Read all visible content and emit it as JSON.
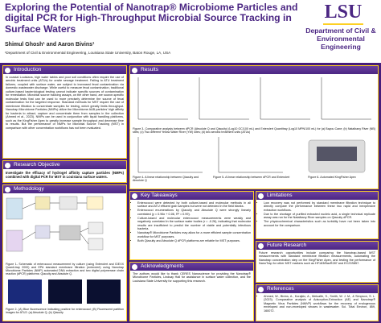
{
  "header": {
    "title": "Exploring the Potential of Nanotrap® Microbiome Particles and digital PCR for High-Throughput Microbial Source Tracking in Surface Waters",
    "authors": "Shimul Ghosh¹ and Aaron Bivins¹",
    "affiliation": "¹Department of Civil & Environmental Engineering, Louisiana State University, Baton Rouge, LA, USA",
    "logo": "LSU",
    "department": "Department of Civil & Environmental Engineering"
  },
  "introduction": {
    "heading": "Introduction",
    "text": "In coastal Louisiana, high water tables and poor soil conditions often require the use of aerobic treatment units (ATUs) for onsite sewage treatment. Failing to ATU treatment failures, coupled with surface water, are subject to increased fecal contamination via domestic wastewater discharge. While useful to measure fecal contamination, traditional culture-based bacteriological testing cannot indicate specific sources of contamination for remediation. Microbial source tracking assays, on the other hand, are source-specific molecular tests that can be used to more precisely determine the source of fecal contamination for the targeted response. Standard methods for MST require the use of membrane filtration to concentrate samples for testing, which greatly limits throughput. Nanotrap Microbiome Particles (NMPs) utilize the Microbiome A&B particles' high affinity for bacteria to attract, capture and concentrate them from samples in the collection (Ahmed et al., 2023). NMPs can be used in conjunction with liquid handling platforms, such as the KingFisher Apex to greatly increase sample throughput and decrease time to results. But the performance of NMPs for Microbial Source Tracking (MST) in comparison with other concentration workflows has not been evaluated."
  },
  "research_objective": {
    "heading": "Research Objective",
    "text": "Investigate the efficacy of hydrogel affinity capture particles (NMPs) combined with digital PCR for MST in Louisiana surface waters."
  },
  "methodology": {
    "heading": "Methodology",
    "figure_1_caption": "Figure 1- Schematic of enterococci measurement by culture (using Enterolert and IDEXX Quanti-tray 2000) and EPA standard membrane filtration (enterolert) using Nanotrap Microbiome Particles (NMP) automated DNA extraction and two digital polymerase chain reaction (dPCR) platforms: Qiacuity and Absolute Q.",
    "figure_2_caption": "Figure 2- (A) Blue fluorescence indicating positive for enterococci; (B) Fluorescent partition images for ATU2: (a) Absolute Q; (b) Qiacuity"
  },
  "results": {
    "heading": "Results",
    "figure_3_caption": "Figure 3- Comparative analysis between dPCR (Absolute Q and Qiacuity) (Log10 GC/100 mL) and Enterolert Quantitray (Log10 MPN/100 mL) for (a) Bayou Cane; (b) Natalbany River (NB) sites; (c) Two different Yellow Water River (YW) sites; (d) two aerobic treatment units (ATUs)",
    "figure_4_caption": "Figure 4- A linear relationship between Qiacuity and Absolute Q",
    "figure_5_caption": "Figure 5- A linear relationship between dPCR and Enterolert",
    "figure_6_caption": "Figure 6- Automated KingFisher Apex"
  },
  "key_takeaways": {
    "heading": "Key Takeaways",
    "items": [
      "Enterococci were detected by both culture-based and molecular methods in all surface and ATU effluent grab samples but were not detected in the field blanks.",
      "Enterococci enumerations by Qiacuity and Absolute Q were strongly linearly correlated (y = 0.96x + 0.06, R² = 0.99).",
      "Culture-based and molecular enterococci measurements were weakly and negatively correlated in the surface water bodies (r = -0.26), indicating that molecular results are insufficient to predict the number of viable and potentially infectious bacteria.",
      "Nanotrap® Microbiome Particles may allow for a more efficient sample concentration workflow for MST purposes.",
      "Both Qiacuity and Absolute Q dPCR platforms are reliable for MST purposes."
    ]
  },
  "acknowledgments": {
    "heading": "Acknowledgments",
    "text": "The authors would like to thank CERES Nanoscience for providing the Nanotrap® Microbiome Particles, Lindsay Hall for assistance in surface water collection, and the Louisiana State University for supporting this research."
  },
  "limitations": {
    "heading": "Limitations",
    "items": [
      "Low recovery was not performed by standard membrane filtration technique to directly compare the performance between these two rapid and inexpensive extraction workflows.",
      "Due to the shortage of purified extracted nucleic acid, a single technical replicate assay was run for the Natalbany River samples on Qiacuity dPCR.",
      "The physicochemical characteristics such as turbidity have not been taken into account for the comparison."
    ]
  },
  "future_research": {
    "heading": "Future Research",
    "text": "Future research opportunities include comparing the Nanotrap-based MST measurements with standard membrane filtration measurements, automating the Nanotrap concentration step on the KingFisher Apex, and testing the performance of NanoTrap for other MST markers such as HF183/BacR287 and EC23S857."
  },
  "references": {
    "heading": "References",
    "items": [
      "Ahmed, W., Bivins, A., Korajkic, A., Metcalfe, S., Smith, W. J. M., & Simpson, S. L. (2023). Comparative analysis of Adsorption-Extraction (AE) and Nanotrap® Magnetic Virus Particles (NMVP) workflows for the recovery of endogenous enveloped and non-enveloped viruses in wastewater. Sci. Total Environ, 859, 160072."
    ]
  }
}
